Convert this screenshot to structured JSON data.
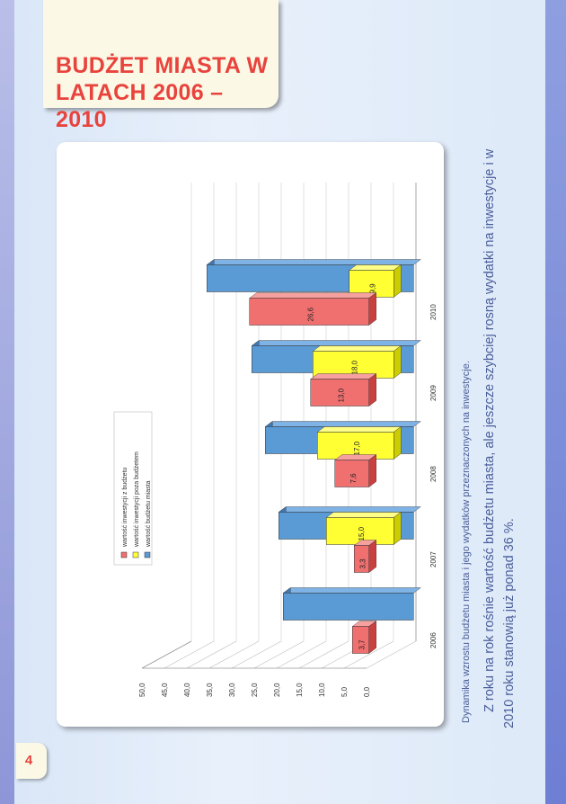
{
  "page": {
    "title": "BUDŻET MIASTA W LATACH 2006 – 2010",
    "caption": "Dynamika wzrostu budżetu miasta i jego wydatków przeznaczonych na inwestycje.",
    "body_line1": "Z roku na rok rośnie wartość budżetu miasta, ale jeszcze szybciej rosną wydatki na inwestycje i w",
    "body_line2": "2010 roku stanowią już ponad 36 %.",
    "page_number": "4"
  },
  "colors": {
    "budget": "#5b9bd5",
    "budget_top": "#7fb3e6",
    "budget_side": "#3f78b3",
    "after_budget": "#ffff33",
    "after_top": "#ffff88",
    "after_side": "#cccc00",
    "from_budget": "#f07070",
    "from_top": "#f7a0a0",
    "from_side": "#c84040",
    "title": "#e8433d"
  },
  "chart_data": {
    "type": "bar",
    "categories": [
      "2006",
      "2007",
      "2008",
      "2009",
      "2010"
    ],
    "series": [
      {
        "name": "wartość inwestycji z budżetu",
        "values": [
          3.7,
          3.3,
          7.6,
          13.0,
          26.6
        ],
        "labels": [
          "3,7",
          "3,3",
          "7,6",
          "13,0",
          "26,6"
        ]
      },
      {
        "name": "wartość inwestycji poza budżetem",
        "values": [
          null,
          15.0,
          17.0,
          18.0,
          9.9
        ],
        "labels": [
          "",
          "15,0",
          "17,0",
          "18,0",
          "9,9"
        ]
      },
      {
        "name": "wartość budżetu miasta",
        "values": [
          null,
          null,
          null,
          null,
          null
        ],
        "labels": [
          "",
          "",
          "",
          "",
          ""
        ]
      }
    ],
    "yticks": [
      "0,0",
      "5,0",
      "10,0",
      "15,0",
      "20,0",
      "25,0",
      "30,0",
      "35,0",
      "40,0",
      "45,0",
      "50,0"
    ],
    "ylim": [
      0,
      50
    ],
    "orientation": "rotated-90",
    "grid": true,
    "legend_position": "top"
  }
}
